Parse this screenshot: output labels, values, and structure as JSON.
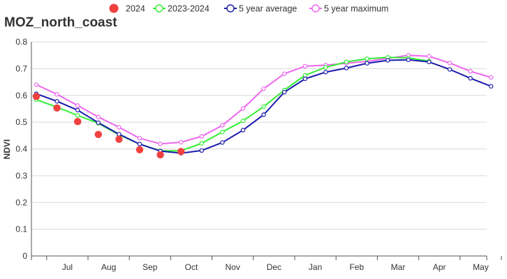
{
  "chart_data": {
    "type": "line",
    "title": "MOZ_north_coast",
    "ylabel": "NDVI",
    "xlabel": "",
    "ylim": [
      0,
      0.8
    ],
    "yticks": [
      0,
      0.1,
      0.2,
      0.3,
      0.4,
      0.5,
      0.6,
      0.7,
      0.8
    ],
    "ytick_labels": [
      "0",
      "0.1",
      "0.2",
      "0.3",
      "0.4",
      "0.5",
      "0.6",
      "0.7",
      "0.8"
    ],
    "x_month_labels": [
      "Jul",
      "Aug",
      "Sep",
      "Oct",
      "Nov",
      "Dec",
      "Jan",
      "Feb",
      "Mar",
      "Apr",
      "May"
    ],
    "grid": "horizontal",
    "legend_position": "top",
    "series": [
      {
        "name": "2024",
        "style": "dots",
        "color": "#f04040",
        "values": [
          0.596,
          0.553,
          0.502,
          0.454,
          0.436,
          0.397,
          0.378,
          0.39
        ]
      },
      {
        "name": "2023-2024",
        "style": "line",
        "color": "#33ee33",
        "values": [
          0.584,
          0.556,
          0.525,
          0.496,
          0.453,
          0.418,
          0.393,
          0.393,
          0.421,
          0.463,
          0.505,
          0.558,
          0.62,
          0.675,
          0.705,
          0.725,
          0.737,
          0.742,
          0.74,
          0.728
        ]
      },
      {
        "name": "5 year average",
        "style": "line",
        "color": "#1a1aaa",
        "values": [
          0.606,
          0.578,
          0.545,
          0.498,
          0.455,
          0.418,
          0.392,
          0.384,
          0.394,
          0.424,
          0.47,
          0.528,
          0.612,
          0.662,
          0.687,
          0.702,
          0.72,
          0.731,
          0.733,
          0.725,
          0.697,
          0.664,
          0.634
        ]
      },
      {
        "name": "5 year maximum",
        "style": "line",
        "color": "#ee66ee",
        "values": [
          0.64,
          0.604,
          0.562,
          0.519,
          0.481,
          0.44,
          0.419,
          0.425,
          0.447,
          0.488,
          0.551,
          0.625,
          0.681,
          0.709,
          0.713,
          0.72,
          0.727,
          0.738,
          0.75,
          0.746,
          0.721,
          0.69,
          0.667
        ]
      }
    ]
  }
}
